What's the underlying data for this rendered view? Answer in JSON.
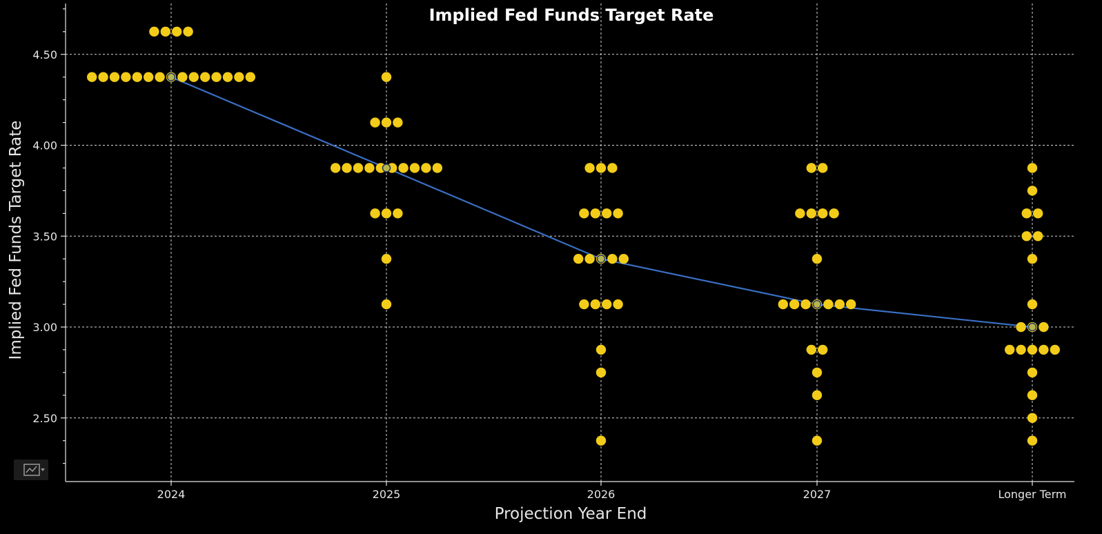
{
  "chart_data": {
    "type": "scatter",
    "title": "Implied Fed Funds Target Rate",
    "xlabel": "Projection Year End",
    "ylabel": "Implied Fed Funds Target Rate",
    "categories": [
      "2024",
      "2025",
      "2026",
      "2027",
      "Longer Term"
    ],
    "ylim": [
      2.15,
      4.78
    ],
    "yticks": [
      2.5,
      3.0,
      3.5,
      4.0,
      4.5
    ],
    "ytick_labels": [
      "2.50",
      "3.00",
      "3.50",
      "4.00",
      "4.50"
    ],
    "grid": true,
    "colors": {
      "dots": "#f2cc19",
      "median_line": "#3a6fc4",
      "background": "#000000",
      "text": "#e6e6e6"
    },
    "series": [
      {
        "type": "dot-plot",
        "groups": [
          {
            "category": "2024",
            "points": [
              {
                "y": 4.625,
                "count": 4
              },
              {
                "y": 4.375,
                "count": 15
              }
            ]
          },
          {
            "category": "2025",
            "points": [
              {
                "y": 4.375,
                "count": 1
              },
              {
                "y": 4.125,
                "count": 3
              },
              {
                "y": 3.875,
                "count": 10
              },
              {
                "y": 3.625,
                "count": 3
              },
              {
                "y": 3.375,
                "count": 1
              },
              {
                "y": 3.125,
                "count": 1
              }
            ]
          },
          {
            "category": "2026",
            "points": [
              {
                "y": 3.875,
                "count": 3
              },
              {
                "y": 3.625,
                "count": 4
              },
              {
                "y": 3.375,
                "count": 5
              },
              {
                "y": 3.125,
                "count": 4
              },
              {
                "y": 2.875,
                "count": 1
              },
              {
                "y": 2.75,
                "count": 1
              },
              {
                "y": 2.375,
                "count": 1
              }
            ]
          },
          {
            "category": "2027",
            "points": [
              {
                "y": 3.875,
                "count": 2
              },
              {
                "y": 3.625,
                "count": 4
              },
              {
                "y": 3.375,
                "count": 1
              },
              {
                "y": 3.125,
                "count": 7
              },
              {
                "y": 2.875,
                "count": 2
              },
              {
                "y": 2.75,
                "count": 1
              },
              {
                "y": 2.625,
                "count": 1
              },
              {
                "y": 2.375,
                "count": 1
              }
            ]
          },
          {
            "category": "Longer Term",
            "points": [
              {
                "y": 3.875,
                "count": 1
              },
              {
                "y": 3.75,
                "count": 1
              },
              {
                "y": 3.625,
                "count": 2
              },
              {
                "y": 3.5,
                "count": 2
              },
              {
                "y": 3.375,
                "count": 1
              },
              {
                "y": 3.125,
                "count": 1
              },
              {
                "y": 3.0,
                "count": 3
              },
              {
                "y": 2.875,
                "count": 5
              },
              {
                "y": 2.75,
                "count": 1
              },
              {
                "y": 2.625,
                "count": 1
              },
              {
                "y": 2.5,
                "count": 1
              },
              {
                "y": 2.375,
                "count": 1
              }
            ]
          }
        ]
      },
      {
        "type": "line",
        "values": [
          4.375,
          3.875,
          3.375,
          3.125,
          3.0
        ]
      }
    ]
  },
  "toolbar": {
    "chart_type_icon": "line-chart-icon"
  }
}
